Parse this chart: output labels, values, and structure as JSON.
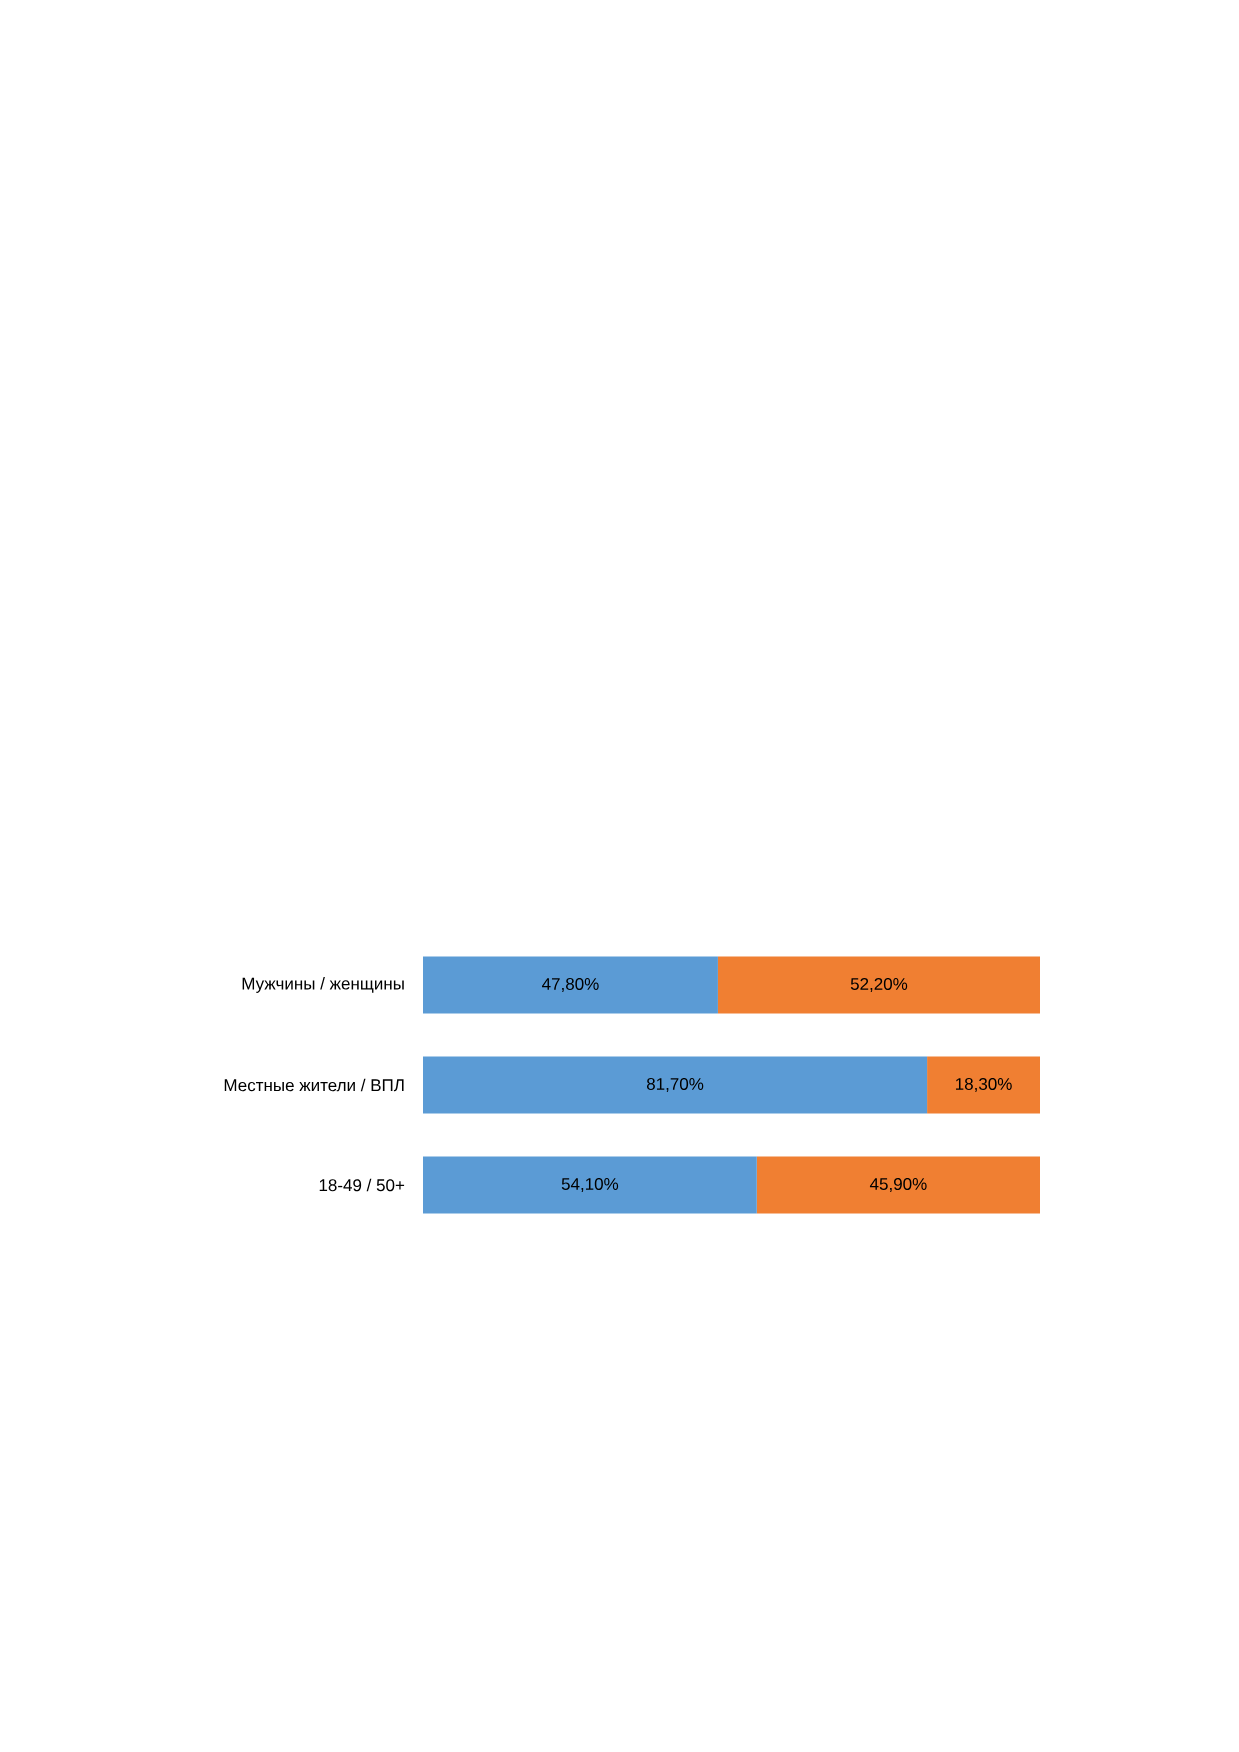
{
  "chart_data": {
    "type": "bar",
    "orientation": "horizontal",
    "stacked": true,
    "categories": [
      "Мужчины / женщины",
      "Местные жители / ВПЛ",
      "18-49 / 50+"
    ],
    "series": [
      {
        "color": "#5b9bd5",
        "values": [
          47.8,
          81.7,
          54.1
        ],
        "value_labels": [
          "47,80%",
          "81,70%",
          "54,10%"
        ]
      },
      {
        "color": "#f07f32",
        "values": [
          52.2,
          18.3,
          45.9
        ],
        "value_labels": [
          "52,20%",
          "18,30%",
          "45,90%"
        ]
      }
    ]
  }
}
